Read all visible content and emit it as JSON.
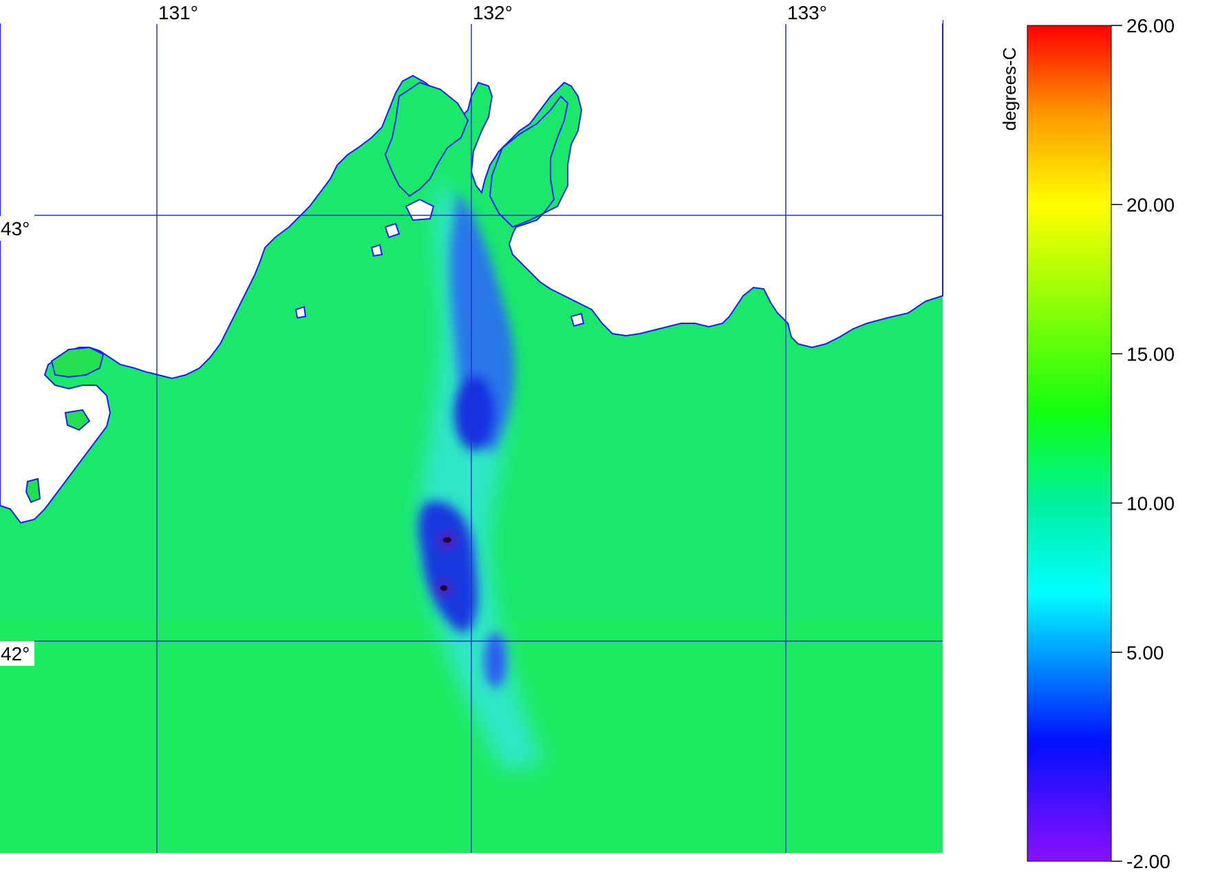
{
  "map": {
    "lon_labels": [
      "131°",
      "132°",
      "133°"
    ],
    "lat_labels": [
      "43°",
      "42°"
    ],
    "grid_color": "#2233cc",
    "coast_color": "#1a1aff",
    "sea_color": "#19e86a",
    "cold_color": "#1030e0"
  },
  "colorbar": {
    "unit": "degrees-C",
    "min": -2.0,
    "max": 26.0,
    "tick_labels": [
      "26.00",
      "20.00",
      "15.00",
      "10.00",
      "5.00",
      "-2.00"
    ],
    "tick_values": [
      26,
      20,
      15,
      10,
      5,
      -2
    ],
    "stops": [
      {
        "value": -2,
        "color": "#8a10ff"
      },
      {
        "value": 2,
        "color": "#0010ff"
      },
      {
        "value": 7,
        "color": "#00ffff"
      },
      {
        "value": 10,
        "color": "#00f0a0"
      },
      {
        "value": 13,
        "color": "#10ff10"
      },
      {
        "value": 20,
        "color": "#ffff00"
      },
      {
        "value": 23,
        "color": "#ff9a00"
      },
      {
        "value": 26,
        "color": "#ff0000"
      }
    ]
  }
}
